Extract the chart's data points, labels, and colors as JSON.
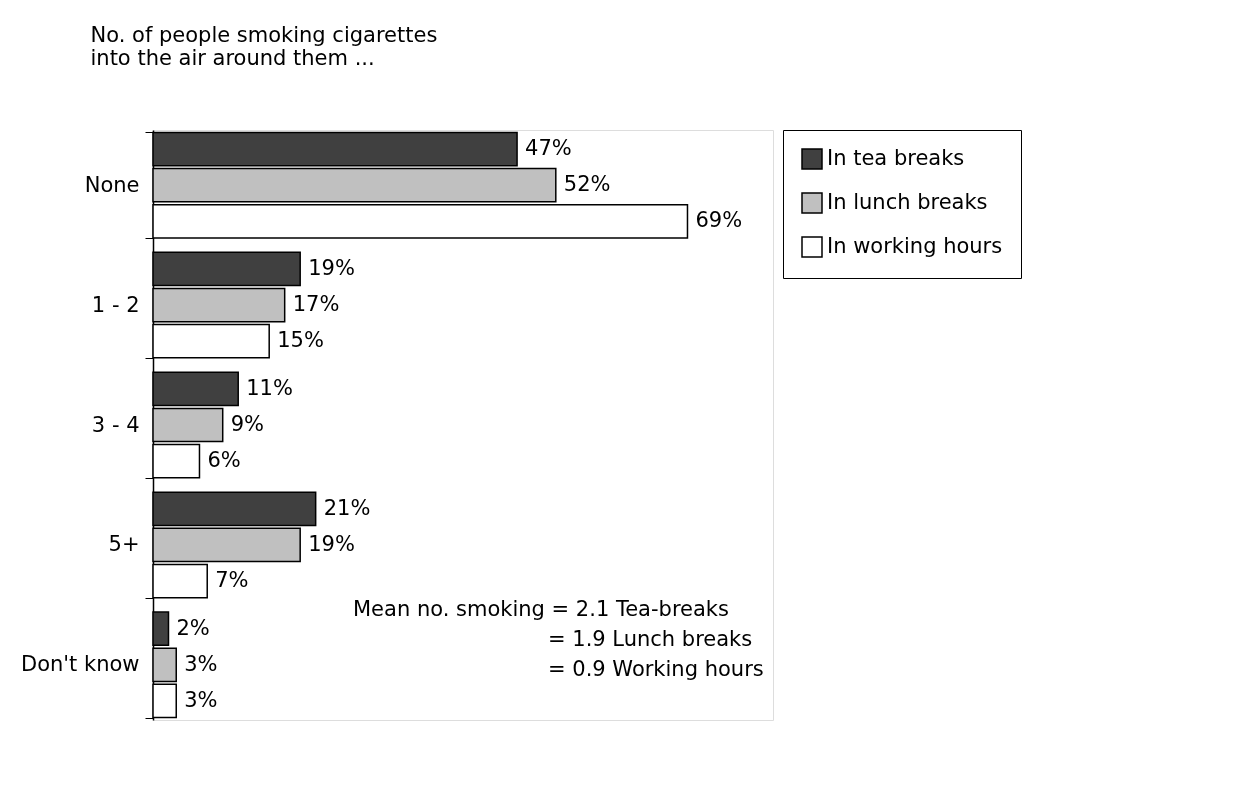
{
  "chart_data": {
    "type": "bar",
    "orientation": "horizontal",
    "title": [
      "No. of people smoking cigarettes",
      "into the air around them ..."
    ],
    "categories": [
      "None",
      "1 - 2",
      "3 - 4",
      "5+",
      "Don't know"
    ],
    "series": [
      {
        "name": "In tea breaks",
        "color": "#404040",
        "values": [
          47,
          19,
          11,
          21,
          2
        ],
        "value_labels": [
          "47%",
          "19%",
          "11%",
          "21%",
          "2%"
        ]
      },
      {
        "name": "In lunch breaks",
        "color": "#c0c0c0",
        "values": [
          52,
          17,
          9,
          19,
          3
        ],
        "value_labels": [
          "52%",
          "17%",
          "9%",
          "19%",
          "3%"
        ]
      },
      {
        "name": "In working hours",
        "color": "#ffffff",
        "values": [
          69,
          15,
          6,
          7,
          3
        ],
        "value_labels": [
          "69%",
          "15%",
          "6%",
          "7%",
          "3%"
        ]
      }
    ],
    "annotations": [
      "Mean no. smoking  = 2.1 Tea-breaks",
      "= 1.9 Lunch breaks",
      "= 0.9 Working hours"
    ],
    "legend": "right",
    "grid": false
  }
}
